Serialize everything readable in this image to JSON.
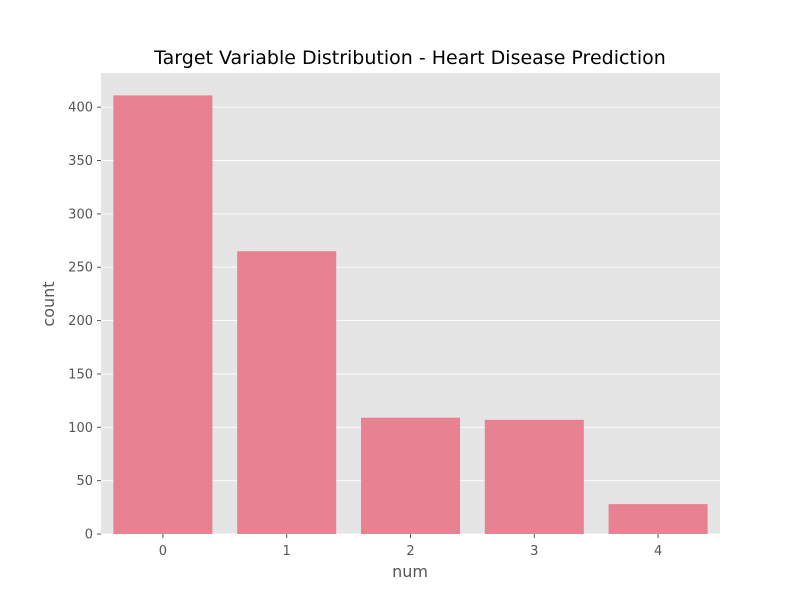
{
  "chart_data": {
    "type": "bar",
    "title": "Target Variable Distribution - Heart Disease Prediction",
    "xlabel": "num",
    "ylabel": "count",
    "categories": [
      "0",
      "1",
      "2",
      "3",
      "4"
    ],
    "values": [
      411,
      265,
      109,
      107,
      28
    ],
    "ylim": [
      0,
      432
    ],
    "yticks": [
      0,
      50,
      100,
      150,
      200,
      250,
      300,
      350,
      400
    ],
    "grid": true,
    "legend": "none",
    "colors": {
      "bar": "#e88191",
      "plot_background": "#e5e5e5",
      "grid": "#ffffff",
      "tick": "#555555"
    }
  }
}
